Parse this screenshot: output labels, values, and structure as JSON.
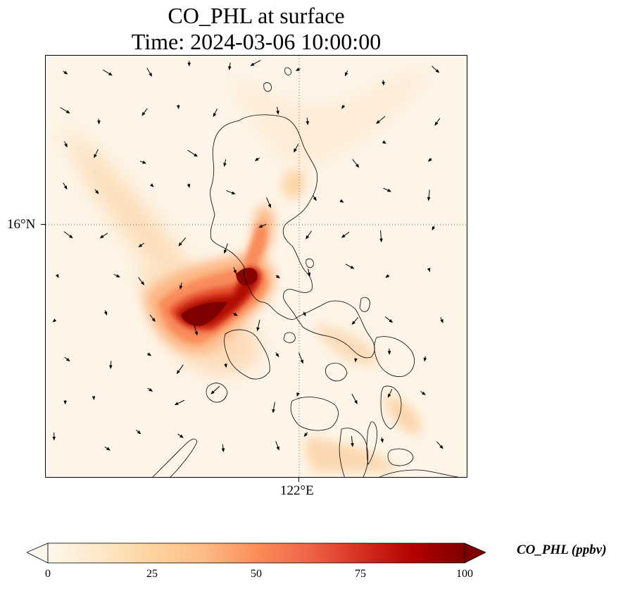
{
  "title": {
    "line1": "CO_PHL at surface",
    "line2": "Time: 2024-03-06 10:00:00"
  },
  "axes": {
    "lat_label": "16°N",
    "lon_label": "122°E"
  },
  "colorbar": {
    "title": "CO_PHL (ppbv)",
    "ticks": [
      "0",
      "25",
      "50",
      "75",
      "100"
    ],
    "range": [
      0,
      100
    ],
    "extend": "both",
    "colormap": "OrRd",
    "colors": [
      "#fff7ec",
      "#fee8c8",
      "#fdd49e",
      "#fdbb84",
      "#fc8d59",
      "#ef6548",
      "#d7301f",
      "#b30000",
      "#7f0000"
    ]
  },
  "map": {
    "region": "Philippines (Luzon and Visayas)",
    "gridlines": "dotted",
    "plume": "high CO concentrations over Manila Bay area extending west-southwest over the South China Sea",
    "wind_vectors": true
  }
}
